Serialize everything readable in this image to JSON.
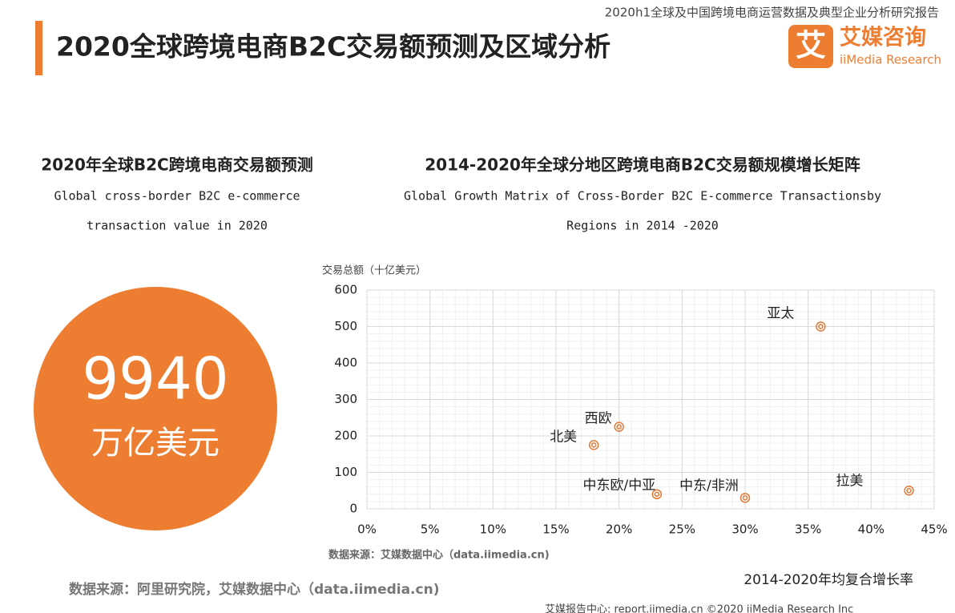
{
  "header": {
    "report": "2020h1全球及中国跨境电商运营数据及典型企业分析研究报告",
    "title": "2020全球跨境电商B2C交易额预测及区域分析",
    "logo_mark": "艾",
    "logo_cn": "艾媒咨询",
    "logo_en": "iiMedia Research"
  },
  "left_panel": {
    "title": "2020年全球B2C跨境电商交易额预测",
    "subtitle_line1": "Global cross-border B2C e-commerce",
    "subtitle_line2": "transaction value in 2020",
    "value": 9940,
    "unit": "万亿美元"
  },
  "chart_data": {
    "type": "scatter",
    "title": "2014-2020年全球分地区跨境电商B2C交易额规模增长矩阵",
    "subtitle_line1": "Global Growth Matrix of Cross-Border B2C E-commerce Transactionsby",
    "subtitle_line2": "Regions  in 2014 -2020",
    "y_label": "交易总额（十亿美元）",
    "x_label": "2014-2020年均复合增长率",
    "source": "数据来源：艾媒数据中心（data.iimedia.cn)",
    "point_labels": [
      "亚太",
      "西欧",
      "北美",
      "中东欧/中亚",
      "中东/非洲",
      "拉美"
    ],
    "x": [
      36,
      20,
      18,
      23,
      30,
      43
    ],
    "values": [
      500,
      225,
      175,
      40,
      30,
      50
    ],
    "color": "#e07b39",
    "xlim": [
      0,
      45
    ],
    "ylim": [
      0,
      600
    ],
    "xticks": [
      {
        "value": 0,
        "label": "0%"
      },
      {
        "value": 5,
        "label": "5%"
      },
      {
        "value": 10,
        "label": "10%"
      },
      {
        "value": 15,
        "label": "15%"
      },
      {
        "value": 20,
        "label": "20%"
      },
      {
        "value": 25,
        "label": "25%"
      },
      {
        "value": 30,
        "label": "30%"
      },
      {
        "value": 35,
        "label": "35%"
      },
      {
        "value": 40,
        "label": "40%"
      },
      {
        "value": 45,
        "label": "45%"
      }
    ],
    "yticks": [
      0,
      100,
      200,
      300,
      400,
      500,
      600
    ],
    "grid": true
  },
  "footer": {
    "source": "数据来源：阿里研究院，艾媒数据中心（data.iimedia.cn)",
    "copyright": "艾媒报告中心: report.iimedia.cn  ©2020  iiMedia Research  Inc"
  }
}
